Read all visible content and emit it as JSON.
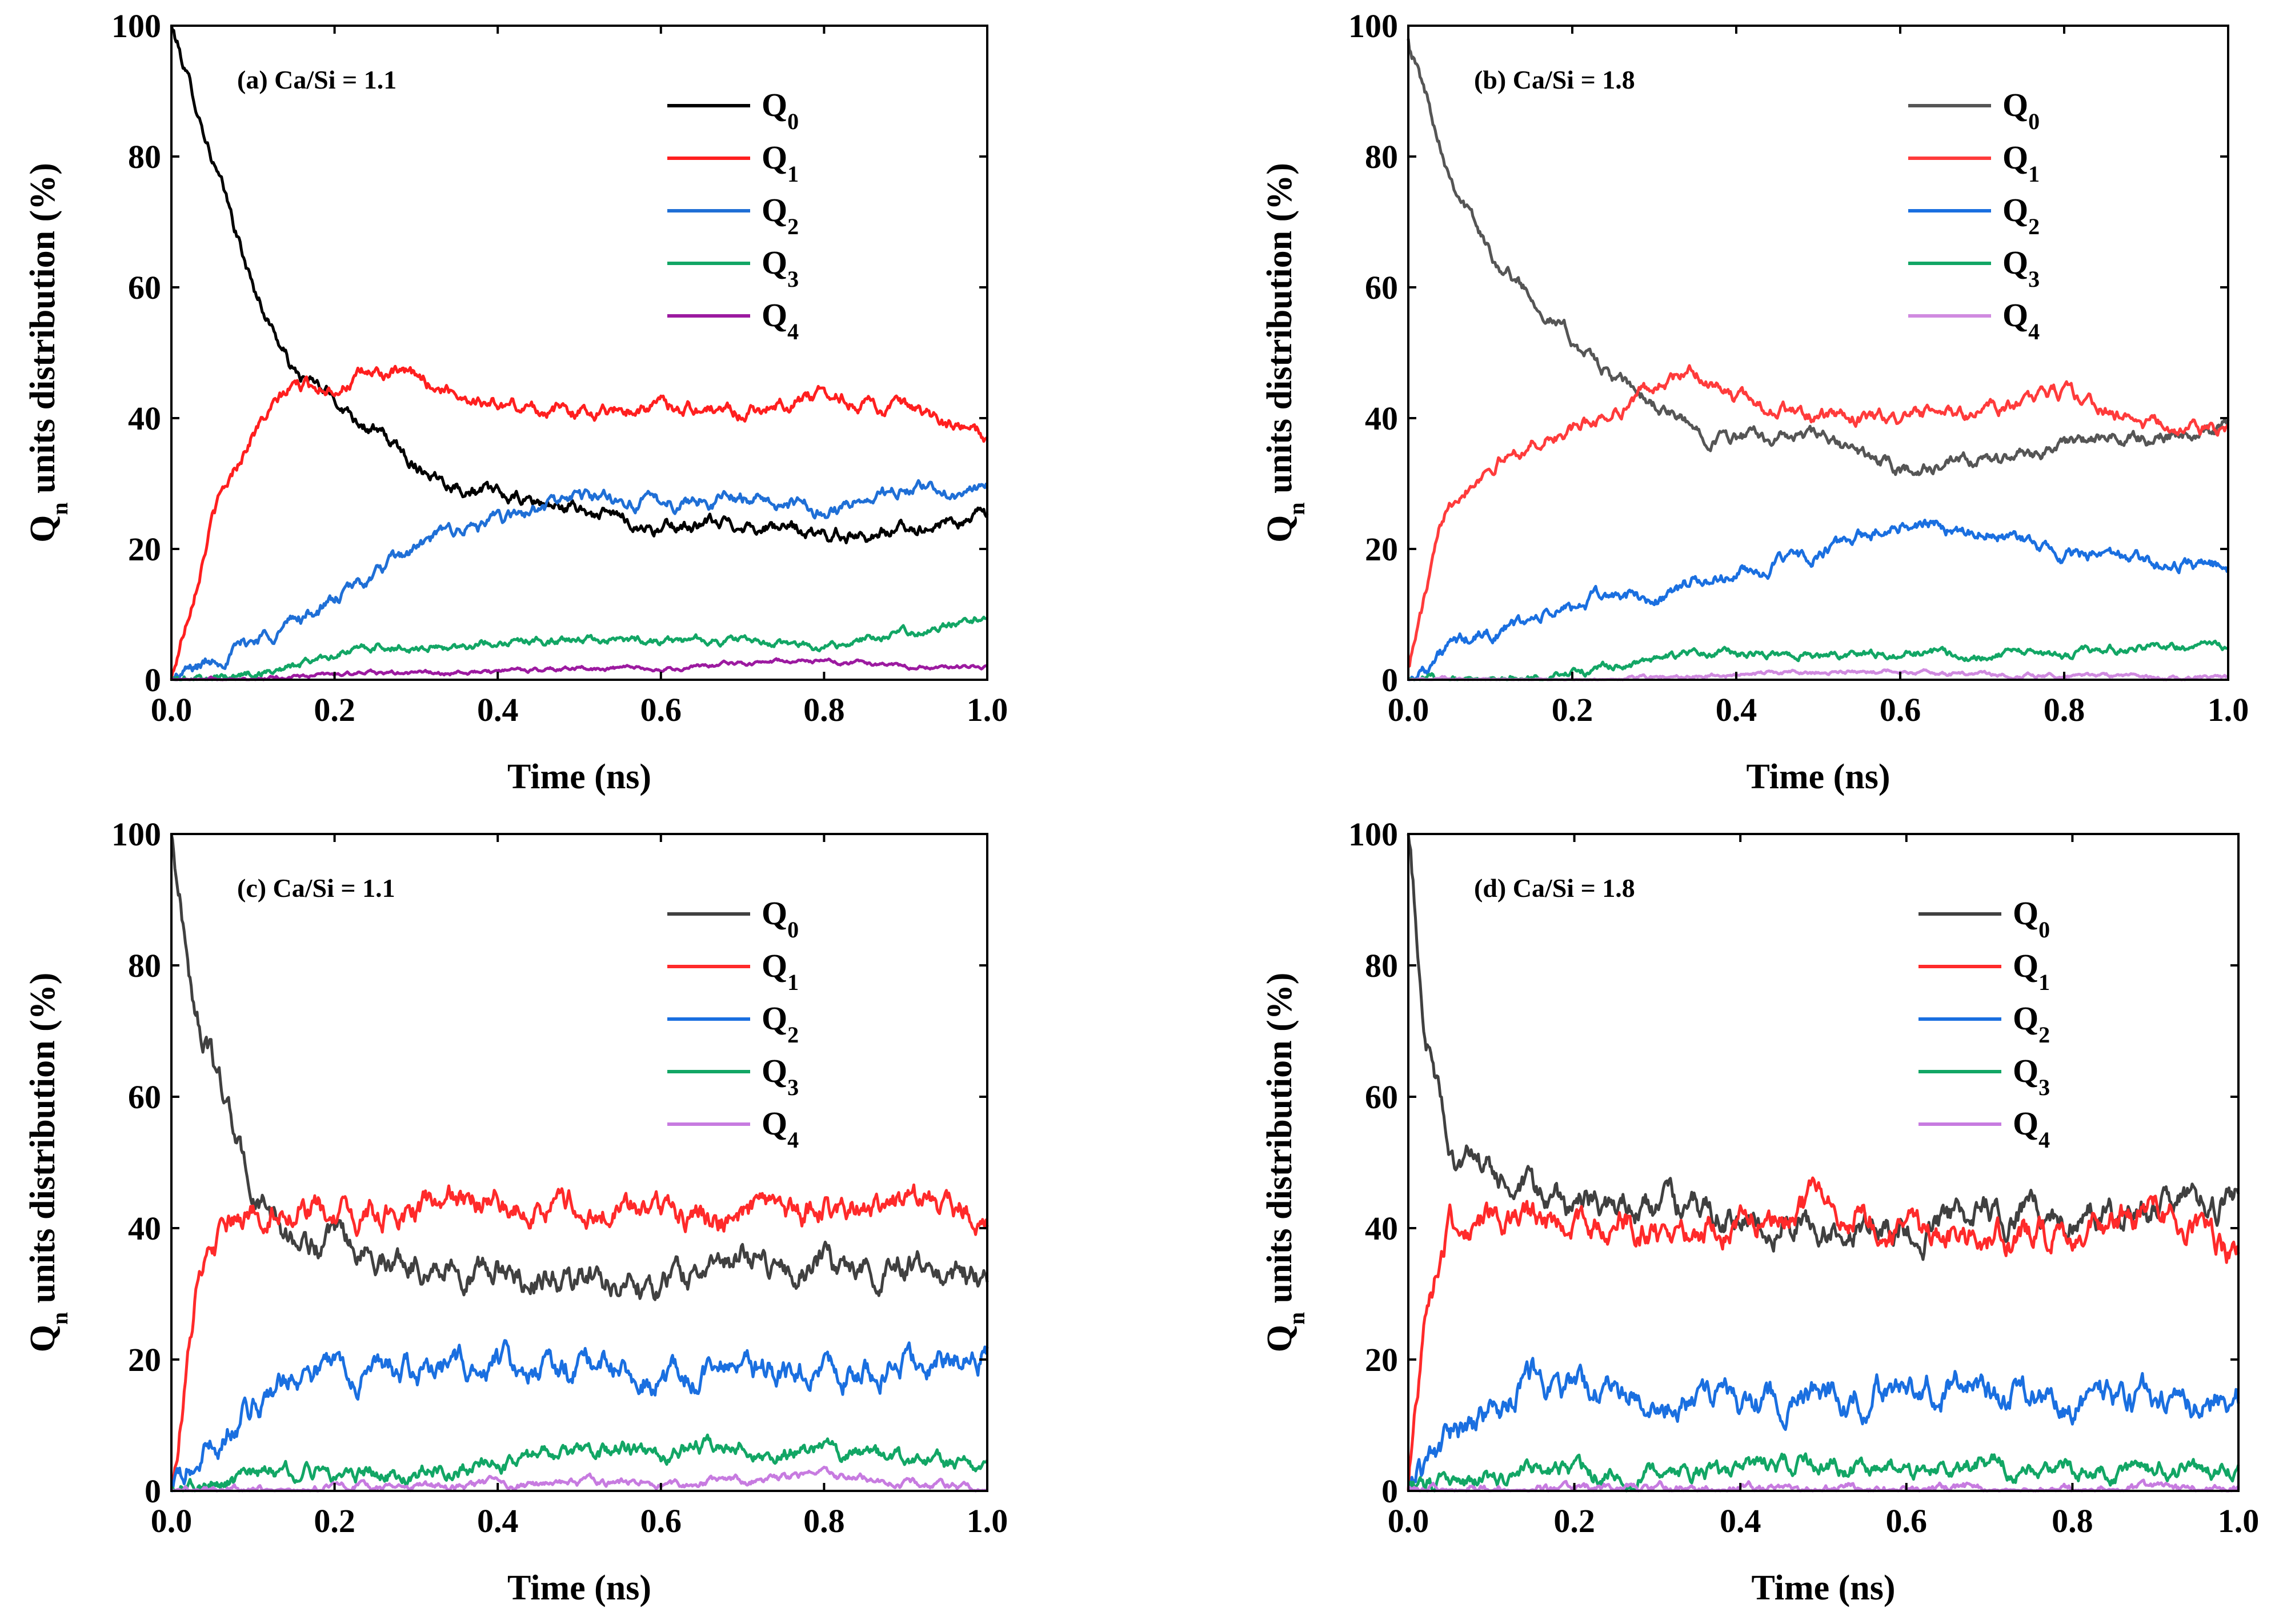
{
  "chart_data": [
    {
      "type": "line",
      "panel": "a",
      "title": "(a) Ca/Si = 1.1",
      "xlabel": "Time (ns)",
      "ylabel": {
        "main": "Q",
        "sub": "n",
        "rest": " units distribution (%)"
      },
      "xlim": [
        0,
        1.0
      ],
      "ylim": [
        0,
        100
      ],
      "xticks": [
        "0.0",
        "0.2",
        "0.4",
        "0.6",
        "0.8",
        "1.0"
      ],
      "yticks": [
        "0",
        "20",
        "40",
        "60",
        "80",
        "100"
      ],
      "legend_position": "top-right",
      "noise": 1.3,
      "series": [
        {
          "name": "Q",
          "sub": "0",
          "color": "#000000",
          "x": [
            0,
            0.05,
            0.1,
            0.15,
            0.2,
            0.25,
            0.3,
            0.35,
            0.4,
            0.5,
            0.6,
            0.7,
            0.8,
            0.9,
            1.0
          ],
          "y": [
            100,
            80,
            60,
            47,
            43,
            38,
            33,
            30,
            28,
            26,
            23,
            24,
            22,
            23,
            25
          ]
        },
        {
          "name": "Q",
          "sub": "1",
          "color": "#ff1f1f",
          "x": [
            0,
            0.05,
            0.1,
            0.15,
            0.2,
            0.25,
            0.3,
            0.35,
            0.4,
            0.5,
            0.6,
            0.7,
            0.8,
            0.9,
            1.0
          ],
          "y": [
            0,
            25,
            38,
            45,
            45,
            47,
            46,
            44,
            42,
            41,
            42,
            41,
            44,
            41,
            37
          ]
        },
        {
          "name": "Q",
          "sub": "2",
          "color": "#1f6fd6",
          "x": [
            0,
            0.05,
            0.1,
            0.15,
            0.2,
            0.25,
            0.3,
            0.35,
            0.4,
            0.5,
            0.6,
            0.7,
            0.8,
            0.9,
            1.0
          ],
          "y": [
            0,
            3,
            6,
            9,
            12,
            16,
            20,
            23,
            24,
            28,
            27,
            28,
            26,
            29,
            29
          ]
        },
        {
          "name": "Q",
          "sub": "3",
          "color": "#12a665",
          "x": [
            0,
            0.05,
            0.1,
            0.15,
            0.2,
            0.25,
            0.3,
            0.35,
            0.4,
            0.5,
            0.6,
            0.7,
            0.8,
            0.9,
            1.0
          ],
          "y": [
            0,
            0,
            1,
            2,
            4,
            5,
            5,
            5,
            6,
            6,
            6,
            6,
            5,
            7,
            10
          ]
        },
        {
          "name": "Q",
          "sub": "4",
          "color": "#9c1aa0",
          "x": [
            0,
            0.05,
            0.1,
            0.15,
            0.2,
            0.25,
            0.3,
            0.35,
            0.4,
            0.5,
            0.6,
            0.7,
            0.8,
            0.9,
            1.0
          ],
          "y": [
            0,
            0,
            0,
            0.5,
            0.8,
            1,
            1,
            1,
            1.2,
            1.8,
            1.5,
            2.5,
            3,
            2,
            2
          ]
        }
      ]
    },
    {
      "type": "line",
      "panel": "b",
      "title": "(b) Ca/Si = 1.8",
      "xlabel": "Time (ns)",
      "ylabel": {
        "main": "Q",
        "sub": "n",
        "rest": " units distribution (%)"
      },
      "xlim": [
        0,
        1.0
      ],
      "ylim": [
        0,
        100
      ],
      "xticks": [
        "0.0",
        "0.2",
        "0.4",
        "0.6",
        "0.8",
        "1.0"
      ],
      "yticks": [
        "0",
        "20",
        "40",
        "60",
        "80",
        "100"
      ],
      "legend_position": "top-right",
      "noise": 1.3,
      "series": [
        {
          "name": "Q",
          "sub": "0",
          "color": "#555555",
          "x": [
            0,
            0.05,
            0.1,
            0.15,
            0.2,
            0.25,
            0.3,
            0.35,
            0.4,
            0.5,
            0.6,
            0.7,
            0.8,
            0.9,
            1.0
          ],
          "y": [
            98,
            78,
            65,
            59,
            52,
            46,
            42,
            38,
            37,
            37,
            32,
            33,
            36,
            37,
            39
          ]
        },
        {
          "name": "Q",
          "sub": "1",
          "color": "#ff3b3b",
          "x": [
            0,
            0.05,
            0.1,
            0.15,
            0.2,
            0.25,
            0.3,
            0.35,
            0.4,
            0.5,
            0.6,
            0.7,
            0.8,
            0.9,
            1.0
          ],
          "y": [
            2,
            28,
            33,
            36,
            38,
            41,
            45,
            47,
            43,
            40,
            40,
            41,
            44,
            39,
            38
          ]
        },
        {
          "name": "Q",
          "sub": "2",
          "color": "#1a6fe0",
          "x": [
            0,
            0.05,
            0.1,
            0.15,
            0.2,
            0.25,
            0.3,
            0.35,
            0.4,
            0.5,
            0.6,
            0.7,
            0.8,
            0.9,
            1.0
          ],
          "y": [
            0,
            5,
            7,
            9,
            11,
            13,
            12,
            15,
            16,
            19,
            24,
            23,
            19,
            18,
            17
          ]
        },
        {
          "name": "Q",
          "sub": "3",
          "color": "#12a665",
          "x": [
            0,
            0.05,
            0.1,
            0.15,
            0.2,
            0.25,
            0.3,
            0.35,
            0.4,
            0.5,
            0.6,
            0.7,
            0.8,
            0.9,
            1.0
          ],
          "y": [
            0,
            0,
            0,
            0.5,
            1,
            2,
            3,
            4,
            4,
            4,
            4,
            4,
            4,
            5,
            5
          ]
        },
        {
          "name": "Q",
          "sub": "4",
          "color": "#d08ae0",
          "x": [
            0,
            0.05,
            0.1,
            0.15,
            0.2,
            0.25,
            0.3,
            0.35,
            0.4,
            0.5,
            0.6,
            0.7,
            0.8,
            0.9,
            1.0
          ],
          "y": [
            0,
            0,
            0,
            0,
            0,
            0,
            0.3,
            0.5,
            0.8,
            1.2,
            1.3,
            0.8,
            0.5,
            0.4,
            0.3
          ]
        }
      ]
    },
    {
      "type": "line",
      "panel": "c",
      "title": "(c) Ca/Si = 1.1",
      "xlabel": "Time (ns)",
      "ylabel": {
        "main": "Q",
        "sub": "n",
        "rest": " units distribution (%)"
      },
      "xlim": [
        0,
        1.0
      ],
      "ylim": [
        0,
        100
      ],
      "xticks": [
        "0.0",
        "0.2",
        "0.4",
        "0.6",
        "0.8",
        "1.0"
      ],
      "yticks": [
        "0",
        "20",
        "40",
        "60",
        "80",
        "100"
      ],
      "legend_position": "top-right",
      "noise": 2.6,
      "series": [
        {
          "name": "Q",
          "sub": "0",
          "color": "#404040",
          "x": [
            0,
            0.03,
            0.06,
            0.1,
            0.15,
            0.2,
            0.3,
            0.4,
            0.5,
            0.6,
            0.7,
            0.8,
            0.9,
            1.0
          ],
          "y": [
            100,
            72,
            62,
            45,
            38,
            37,
            35,
            33,
            32,
            32,
            35,
            34,
            35,
            32
          ]
        },
        {
          "name": "Q",
          "sub": "1",
          "color": "#ff2a2a",
          "x": [
            0,
            0.03,
            0.06,
            0.1,
            0.15,
            0.2,
            0.3,
            0.4,
            0.5,
            0.6,
            0.7,
            0.8,
            0.9,
            1.0
          ],
          "y": [
            0,
            30,
            38,
            42,
            44,
            41,
            43,
            44,
            43,
            43,
            41,
            43,
            44,
            43
          ]
        },
        {
          "name": "Q",
          "sub": "2",
          "color": "#1a6fe0",
          "x": [
            0,
            0.03,
            0.06,
            0.1,
            0.15,
            0.2,
            0.3,
            0.4,
            0.5,
            0.6,
            0.7,
            0.8,
            0.9,
            1.0
          ],
          "y": [
            0,
            4,
            8,
            13,
            18,
            19,
            18,
            20,
            19,
            18,
            19,
            18,
            20,
            21
          ]
        },
        {
          "name": "Q",
          "sub": "3",
          "color": "#12a665",
          "x": [
            0,
            0.03,
            0.06,
            0.1,
            0.15,
            0.2,
            0.3,
            0.4,
            0.5,
            0.6,
            0.7,
            0.8,
            0.9,
            1.0
          ],
          "y": [
            0,
            1,
            1,
            2,
            3,
            3,
            3,
            4,
            6,
            6,
            7,
            6,
            4,
            4
          ]
        },
        {
          "name": "Q",
          "sub": "4",
          "color": "#c77be0",
          "x": [
            0,
            0.03,
            0.06,
            0.1,
            0.15,
            0.2,
            0.3,
            0.4,
            0.5,
            0.6,
            0.7,
            0.8,
            0.9,
            1.0
          ],
          "y": [
            0,
            0,
            0,
            0,
            0.3,
            0.5,
            0.5,
            0.8,
            1.2,
            1.2,
            1.5,
            2.5,
            1,
            0.5
          ]
        }
      ]
    },
    {
      "type": "line",
      "panel": "d",
      "title": "(d) Ca/Si = 1.8",
      "xlabel": "Time (ns)",
      "ylabel": {
        "main": "Q",
        "sub": "n",
        "rest": " units distribution (%)"
      },
      "xlim": [
        0,
        1.0
      ],
      "ylim": [
        0,
        100
      ],
      "xticks": [
        "0.0",
        "0.2",
        "0.4",
        "0.6",
        "0.8",
        "1.0"
      ],
      "yticks": [
        "0",
        "20",
        "40",
        "60",
        "80",
        "100"
      ],
      "legend_position": "top-right",
      "noise": 2.8,
      "series": [
        {
          "name": "Q",
          "sub": "0",
          "color": "#404040",
          "x": [
            0,
            0.02,
            0.05,
            0.1,
            0.15,
            0.2,
            0.3,
            0.4,
            0.5,
            0.6,
            0.7,
            0.8,
            0.9,
            1.0
          ],
          "y": [
            100,
            70,
            52,
            48,
            44,
            44,
            43,
            42,
            40,
            40,
            42,
            42,
            43,
            44
          ]
        },
        {
          "name": "Q",
          "sub": "1",
          "color": "#ff2a2a",
          "x": [
            0,
            0.02,
            0.05,
            0.1,
            0.15,
            0.2,
            0.3,
            0.4,
            0.5,
            0.6,
            0.7,
            0.8,
            0.9,
            1.0
          ],
          "y": [
            0,
            28,
            40,
            41,
            40,
            41,
            40,
            41,
            44,
            40,
            38,
            39,
            43,
            36
          ]
        },
        {
          "name": "Q",
          "sub": "2",
          "color": "#1a6fe0",
          "x": [
            0,
            0.02,
            0.05,
            0.1,
            0.15,
            0.2,
            0.3,
            0.4,
            0.5,
            0.6,
            0.7,
            0.8,
            0.9,
            1.0
          ],
          "y": [
            0,
            4,
            8,
            11,
            17,
            15,
            15,
            14,
            15,
            16,
            16,
            14,
            14,
            14
          ]
        },
        {
          "name": "Q",
          "sub": "3",
          "color": "#12a665",
          "x": [
            0,
            0.02,
            0.05,
            0.1,
            0.15,
            0.2,
            0.3,
            0.4,
            0.5,
            0.6,
            0.7,
            0.8,
            0.9,
            1.0
          ],
          "y": [
            0,
            0.5,
            1,
            2,
            3,
            3,
            3,
            3,
            4,
            3,
            4,
            3,
            3,
            3
          ]
        },
        {
          "name": "Q",
          "sub": "4",
          "color": "#c77be0",
          "x": [
            0,
            0.02,
            0.05,
            0.1,
            0.15,
            0.2,
            0.3,
            0.4,
            0.5,
            0.6,
            0.7,
            0.8,
            0.9,
            1.0
          ],
          "y": [
            0,
            0,
            0,
            0,
            0,
            0.2,
            0.3,
            0.3,
            0.4,
            0.6,
            0.6,
            0.3,
            0.2,
            0.2
          ]
        }
      ]
    }
  ]
}
